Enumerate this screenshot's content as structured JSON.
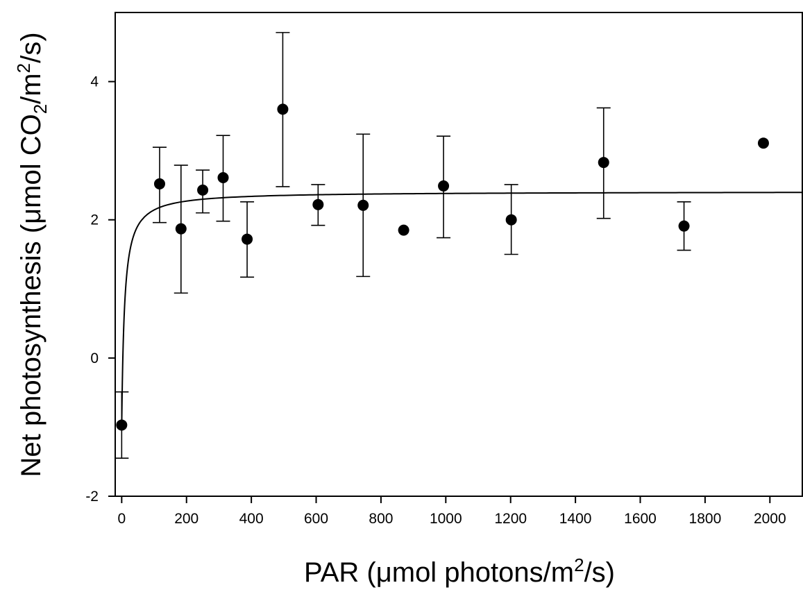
{
  "chart_data": {
    "type": "scatter",
    "title": "",
    "xlabel": {
      "main": "PAR (μmol photons/m",
      "sup": "2",
      "tail": "/s)"
    },
    "ylabel": {
      "main": "Net photosynthesis (μmol CO",
      "sub": "2",
      "mid": "/m",
      "sup": "2",
      "tail": "/s)"
    },
    "xlim": [
      -20,
      2100
    ],
    "ylim": [
      -2,
      5
    ],
    "xticks": [
      0,
      200,
      400,
      600,
      800,
      1000,
      1200,
      1400,
      1600,
      1800,
      2000
    ],
    "yticks": [
      -2,
      0,
      2,
      4
    ],
    "grid": false,
    "legend": "none",
    "series": [
      {
        "points": [
          {
            "x": 0,
            "y": -0.97,
            "err_low": -1.45,
            "err_high": -0.49
          },
          {
            "x": 117,
            "y": 2.52,
            "err_low": 1.96,
            "err_high": 3.05
          },
          {
            "x": 183,
            "y": 1.87,
            "err_low": 0.94,
            "err_high": 2.79
          },
          {
            "x": 250,
            "y": 2.43,
            "err_low": 2.1,
            "err_high": 2.72
          },
          {
            "x": 313,
            "y": 2.61,
            "err_low": 1.98,
            "err_high": 3.22
          },
          {
            "x": 387,
            "y": 1.72,
            "err_low": 1.17,
            "err_high": 2.26
          },
          {
            "x": 497,
            "y": 3.6,
            "err_low": 2.48,
            "err_high": 4.71
          },
          {
            "x": 606,
            "y": 2.22,
            "err_low": 1.92,
            "err_high": 2.51
          },
          {
            "x": 745,
            "y": 2.21,
            "err_low": 1.18,
            "err_high": 3.24
          },
          {
            "x": 870,
            "y": 1.85,
            "err_low": null,
            "err_high": null
          },
          {
            "x": 993,
            "y": 2.49,
            "err_low": 1.74,
            "err_high": 3.21
          },
          {
            "x": 1202,
            "y": 2.0,
            "err_low": 1.5,
            "err_high": 2.51
          },
          {
            "x": 1487,
            "y": 2.83,
            "err_low": 2.02,
            "err_high": 3.62
          },
          {
            "x": 1735,
            "y": 1.91,
            "err_low": 1.56,
            "err_high": 2.26
          },
          {
            "x": 1980,
            "y": 3.11,
            "err_low": null,
            "err_high": null
          }
        ]
      }
    ],
    "fit_curve": {
      "type": "hyperbolic",
      "pmax": 3.41,
      "k": 8.5,
      "rd": 1.0
    }
  }
}
